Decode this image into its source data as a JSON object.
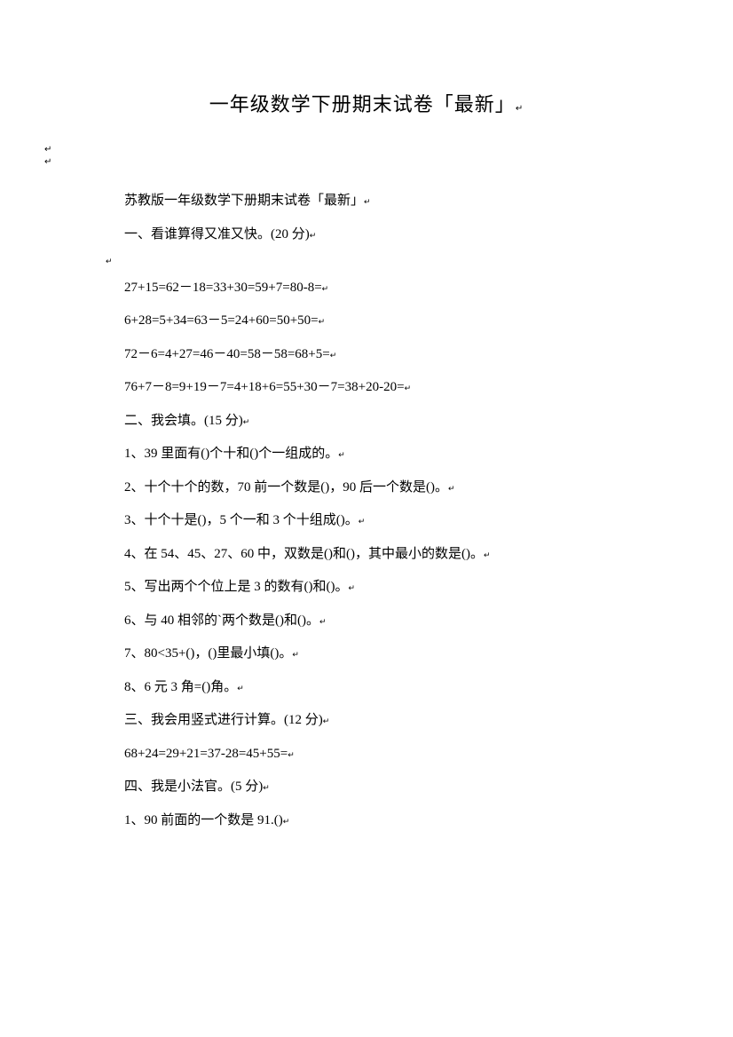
{
  "title": "一年级数学下册期末试卷「最新」",
  "subtitle": "苏教版一年级数学下册期末试卷「最新」",
  "section1": {
    "header": "一、看谁算得又准又快。(20 分)",
    "lines": [
      "27+15=62－18=33+30=59+7=80-8=",
      "6+28=5+34=63－5=24+60=50+50=",
      "72－6=4+27=46－40=58－58=68+5=",
      "76+7－8=9+19－7=4+18+6=55+30－7=38+20-20="
    ]
  },
  "section2": {
    "header": "二、我会填。(15 分)",
    "items": [
      "1、39 里面有()个十和()个一组成的。",
      "2、十个十个的数，70 前一个数是()，90 后一个数是()。",
      "3、十个十是()，5 个一和 3 个十组成()。",
      "4、在 54、45、27、60 中，双数是()和()，其中最小的数是()。",
      "5、写出两个个位上是 3 的数有()和()。",
      "6、与 40 相邻的`两个数是()和()。",
      "7、80<35+()，()里最小填()。",
      "8、6 元 3 角=()角。"
    ]
  },
  "section3": {
    "header": "三、我会用竖式进行计算。(12 分)",
    "line": "68+24=29+21=37-28=45+55="
  },
  "section4": {
    "header": "四、我是小法官。(5 分)",
    "items": [
      "1、90 前面的一个数是 91.()"
    ]
  },
  "marker_char": "↵"
}
